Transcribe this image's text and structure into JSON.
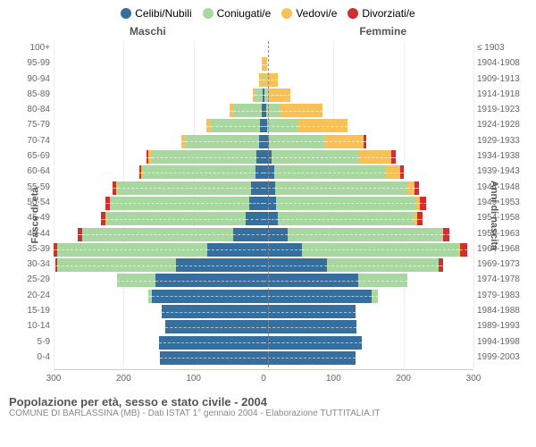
{
  "legend": [
    {
      "label": "Celibi/Nubili",
      "color": "#366f9e"
    },
    {
      "label": "Coniugati/e",
      "color": "#a8d7a0"
    },
    {
      "label": "Vedovi/e",
      "color": "#f7c155"
    },
    {
      "label": "Divorziati/e",
      "color": "#d22e2e"
    }
  ],
  "header_male": "Maschi",
  "header_female": "Femmine",
  "y_left_title": "Fasce di età",
  "y_right_title": "Anni di nascita",
  "footer_title": "Popolazione per età, sesso e stato civile - 2004",
  "footer_sub": "COMUNE DI BARLASSINA (MB) - Dati ISTAT 1° gennaio 2004 - Elaborazione TUTTITALIA.IT",
  "x_max": 300,
  "x_ticks": [
    300,
    200,
    100,
    0,
    100,
    200,
    300
  ],
  "colors": {
    "single": "#366f9e",
    "married": "#a8d7a0",
    "widowed": "#f7c155",
    "divorced": "#d22e2e",
    "grid": "#eeeeee",
    "center": "#888888"
  },
  "rows": [
    {
      "age": "100+",
      "birth": "≤ 1903",
      "m": [
        0,
        0,
        0,
        0
      ],
      "f": [
        0,
        0,
        0,
        0
      ]
    },
    {
      "age": "95-99",
      "birth": "1904-1908",
      "m": [
        0,
        0,
        2,
        0
      ],
      "f": [
        0,
        0,
        5,
        0
      ]
    },
    {
      "age": "90-94",
      "birth": "1909-1913",
      "m": [
        0,
        2,
        4,
        0
      ],
      "f": [
        0,
        0,
        20,
        0
      ]
    },
    {
      "age": "85-89",
      "birth": "1914-1918",
      "m": [
        1,
        10,
        4,
        0
      ],
      "f": [
        1,
        4,
        33,
        0
      ]
    },
    {
      "age": "80-84",
      "birth": "1919-1923",
      "m": [
        3,
        40,
        6,
        0
      ],
      "f": [
        4,
        20,
        60,
        0
      ]
    },
    {
      "age": "75-79",
      "birth": "1924-1928",
      "m": [
        5,
        70,
        7,
        0
      ],
      "f": [
        5,
        45,
        70,
        0
      ]
    },
    {
      "age": "70-74",
      "birth": "1929-1933",
      "m": [
        6,
        105,
        7,
        0
      ],
      "f": [
        8,
        80,
        55,
        4
      ]
    },
    {
      "age": "65-69",
      "birth": "1934-1938",
      "m": [
        10,
        150,
        5,
        2
      ],
      "f": [
        12,
        125,
        45,
        7
      ]
    },
    {
      "age": "60-64",
      "birth": "1939-1943",
      "m": [
        12,
        160,
        3,
        3
      ],
      "f": [
        15,
        160,
        20,
        5
      ]
    },
    {
      "age": "55-59",
      "birth": "1944-1948",
      "m": [
        18,
        190,
        3,
        5
      ],
      "f": [
        16,
        190,
        10,
        6
      ]
    },
    {
      "age": "50-54",
      "birth": "1949-1953",
      "m": [
        20,
        198,
        2,
        6
      ],
      "f": [
        18,
        200,
        6,
        8
      ]
    },
    {
      "age": "45-49",
      "birth": "1954-1958",
      "m": [
        25,
        200,
        1,
        6
      ],
      "f": [
        20,
        195,
        4,
        8
      ]
    },
    {
      "age": "40-44",
      "birth": "1959-1963",
      "m": [
        44,
        215,
        0,
        7
      ],
      "f": [
        35,
        220,
        2,
        8
      ]
    },
    {
      "age": "35-39",
      "birth": "1964-1968",
      "m": [
        80,
        215,
        0,
        5
      ],
      "f": [
        55,
        225,
        1,
        10
      ]
    },
    {
      "age": "30-34",
      "birth": "1969-1973",
      "m": [
        125,
        170,
        0,
        3
      ],
      "f": [
        90,
        160,
        0,
        6
      ]
    },
    {
      "age": "25-29",
      "birth": "1974-1978",
      "m": [
        155,
        55,
        0,
        0
      ],
      "f": [
        135,
        70,
        0,
        0
      ]
    },
    {
      "age": "20-24",
      "birth": "1979-1983",
      "m": [
        160,
        5,
        0,
        0
      ],
      "f": [
        155,
        8,
        0,
        0
      ]
    },
    {
      "age": "15-19",
      "birth": "1984-1988",
      "m": [
        145,
        0,
        0,
        0
      ],
      "f": [
        132,
        0,
        0,
        0
      ]
    },
    {
      "age": "10-14",
      "birth": "1989-1993",
      "m": [
        140,
        0,
        0,
        0
      ],
      "f": [
        133,
        0,
        0,
        0
      ]
    },
    {
      "age": "5-9",
      "birth": "1994-1998",
      "m": [
        150,
        0,
        0,
        0
      ],
      "f": [
        140,
        0,
        0,
        0
      ]
    },
    {
      "age": "0-4",
      "birth": "1999-2003",
      "m": [
        148,
        0,
        0,
        0
      ],
      "f": [
        132,
        0,
        0,
        0
      ]
    }
  ]
}
